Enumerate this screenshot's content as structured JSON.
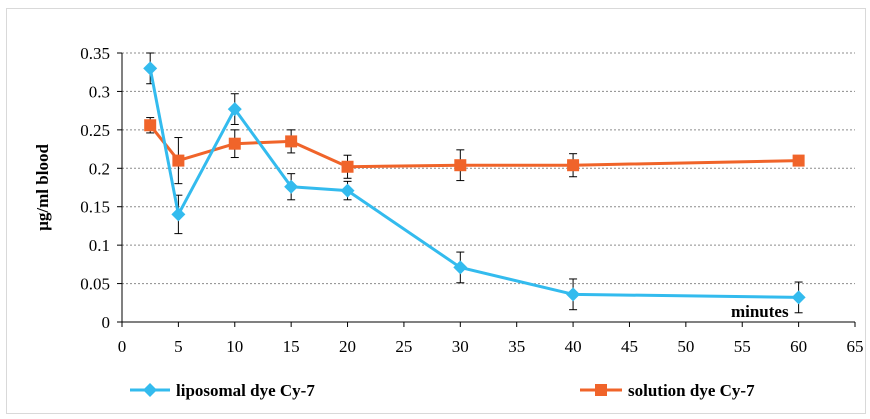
{
  "chart_data": {
    "type": "line",
    "ylabel": "µg/ml blood",
    "annotation": "minutes",
    "xlim": [
      0,
      65
    ],
    "ylim": [
      0,
      0.35
    ],
    "x_ticks": [
      "0",
      "5",
      "10",
      "15",
      "20",
      "25",
      "30",
      "35",
      "40",
      "45",
      "50",
      "55",
      "60",
      "65"
    ],
    "y_ticks": [
      "0",
      "0.05",
      "0.1",
      "0.15",
      "0.2",
      "0.25",
      "0.3",
      "0.35"
    ],
    "grid": "horizontal dashed",
    "legend_placement": "bottom",
    "series": [
      {
        "name": "liposomal dye Cy-7",
        "color": "#33bbee",
        "marker": "diamond",
        "x": [
          2.5,
          5,
          10,
          15,
          20,
          30,
          40,
          60
        ],
        "y": [
          0.33,
          0.14,
          0.277,
          0.176,
          0.171,
          0.071,
          0.036,
          0.032
        ],
        "err": [
          0.02,
          0.025,
          0.02,
          0.017,
          0.012,
          0.02,
          0.02,
          0.02
        ]
      },
      {
        "name": "solution dye Cy-7",
        "color": "#f0642a",
        "marker": "square",
        "x": [
          2.5,
          5,
          10,
          15,
          20,
          30,
          40,
          60
        ],
        "y": [
          0.256,
          0.21,
          0.232,
          0.235,
          0.202,
          0.204,
          0.204,
          0.21
        ],
        "err": [
          0.01,
          0.03,
          0.018,
          0.015,
          0.015,
          0.02,
          0.015,
          0.003
        ]
      }
    ]
  }
}
